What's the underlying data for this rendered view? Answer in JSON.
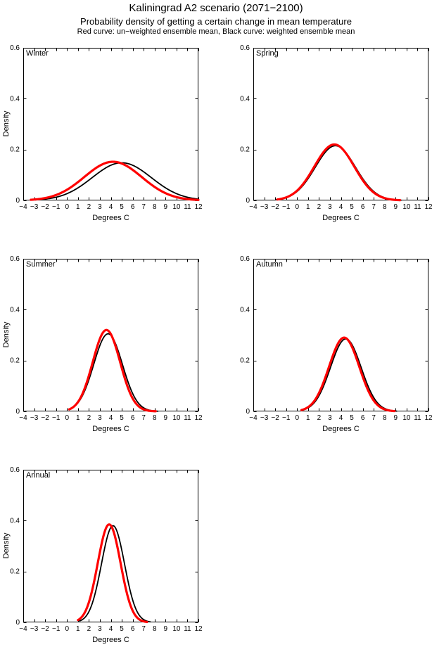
{
  "header": {
    "title": "Kaliningrad A2 scenario (2071−2100)",
    "subtitle": "Probability density of getting a certain change in mean temperature",
    "legend_note": "Red curve: un−weighted ensemble mean, Black curve: weighted ensemble mean"
  },
  "colors": {
    "red": "#ff0000",
    "black": "#000000",
    "axis": "#000000",
    "background": "#ffffff"
  },
  "chart_data": {
    "type": "line",
    "title": "Kaliningrad A2 scenario (2071−2100)",
    "subtitle": "Probability density of getting a certain change in mean temperature",
    "legend_note": "Red curve: un−weighted ensemble mean, Black curve: weighted ensemble mean",
    "xlabel": "Degrees C",
    "ylabel": "Density",
    "xlim": [
      -4,
      12
    ],
    "ylim": [
      0,
      0.6
    ],
    "xticks": [
      -4,
      -3,
      -2,
      -1,
      0,
      1,
      2,
      3,
      4,
      5,
      6,
      7,
      8,
      9,
      10,
      11,
      12
    ],
    "yticks": [
      0,
      0.2,
      0.4,
      0.6
    ],
    "ytick_labels": [
      "0",
      "0.2",
      "0.4",
      "0.6"
    ],
    "grid": false,
    "legend_position": "none",
    "curve_model": "gaussian: density(x) = peak_density * exp(-(x-mean)^2 / (2*sd^2)), drawn from x_start to x_end",
    "panels": [
      {
        "label": "Winter",
        "xlabel": "Degrees C",
        "ylabel": "Density",
        "series": [
          {
            "name": "weighted ensemble mean",
            "color_key": "black",
            "line_width": 1.8,
            "mean": 5.0,
            "sd": 2.7,
            "peak_density": 0.148,
            "x_start": -2.9,
            "x_end": 12
          },
          {
            "name": "un-weighted ensemble mean",
            "color_key": "red",
            "line_width": 3.2,
            "mean": 4.2,
            "sd": 2.62,
            "peak_density": 0.152,
            "x_start": -3.3,
            "x_end": 12
          }
        ]
      },
      {
        "label": "Spring",
        "xlabel": "Degrees C",
        "series": [
          {
            "name": "weighted ensemble mean",
            "color_key": "black",
            "line_width": 1.8,
            "mean": 3.5,
            "sd": 1.84,
            "peak_density": 0.215,
            "x_start": -1.9,
            "x_end": 9.5
          },
          {
            "name": "un-weighted ensemble mean",
            "color_key": "red",
            "line_width": 3.2,
            "mean": 3.4,
            "sd": 1.82,
            "peak_density": 0.22,
            "x_start": -1.8,
            "x_end": 9.4
          }
        ]
      },
      {
        "label": "Summer",
        "xlabel": "Degrees C",
        "ylabel": "Density",
        "series": [
          {
            "name": "weighted ensemble mean",
            "color_key": "black",
            "line_width": 1.8,
            "mean": 3.75,
            "sd": 1.31,
            "peak_density": 0.305,
            "x_start": 0.3,
            "x_end": 8.3
          },
          {
            "name": "un-weighted ensemble mean",
            "color_key": "red",
            "line_width": 3.2,
            "mean": 3.6,
            "sd": 1.25,
            "peak_density": 0.32,
            "x_start": 0.2,
            "x_end": 8.1
          }
        ]
      },
      {
        "label": "Autumn",
        "xlabel": "Degrees C",
        "series": [
          {
            "name": "weighted ensemble mean",
            "color_key": "black",
            "line_width": 1.8,
            "mean": 4.45,
            "sd": 1.4,
            "peak_density": 0.285,
            "x_start": 0.6,
            "x_end": 9.1
          },
          {
            "name": "un-weighted ensemble mean",
            "color_key": "red",
            "line_width": 3.2,
            "mean": 4.3,
            "sd": 1.38,
            "peak_density": 0.29,
            "x_start": 0.4,
            "x_end": 8.9
          }
        ]
      },
      {
        "label": "Annual",
        "xlabel": "Degrees C",
        "ylabel": "Density",
        "series": [
          {
            "name": "weighted ensemble mean",
            "color_key": "black",
            "line_width": 1.8,
            "mean": 4.2,
            "sd": 1.05,
            "peak_density": 0.38,
            "x_start": 1.15,
            "x_end": 7.6
          },
          {
            "name": "un-weighted ensemble mean",
            "color_key": "red",
            "line_width": 3.2,
            "mean": 3.85,
            "sd": 1.04,
            "peak_density": 0.385,
            "x_start": 1.0,
            "x_end": 7.3
          }
        ]
      }
    ]
  }
}
